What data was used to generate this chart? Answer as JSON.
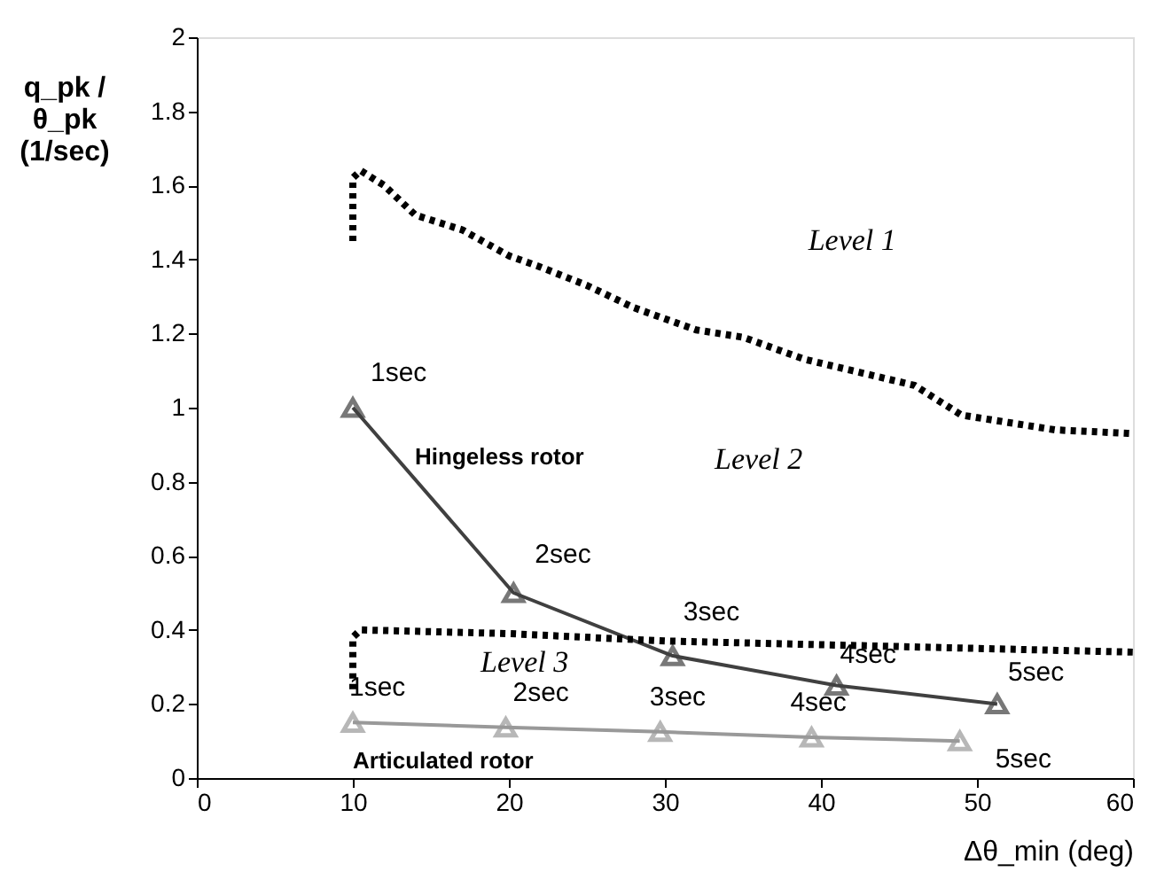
{
  "chart_data": {
    "type": "line",
    "xlabel": "Δθ_min (deg)",
    "ylabel": "q_pk / θ_pk (1/sec)",
    "xlim": [
      0,
      60
    ],
    "ylim": [
      0,
      2
    ],
    "xticks": [
      0,
      10,
      20,
      30,
      40,
      50,
      60
    ],
    "yticks": [
      0,
      0.2,
      0.4,
      0.6,
      0.8,
      1,
      1.2,
      1.4,
      1.6,
      1.8,
      2
    ],
    "grid": false,
    "legend": false,
    "series": [
      {
        "name": "Hingeless rotor",
        "color": "#404040",
        "marker": "triangle",
        "line_style": "solid",
        "x": [
          10,
          20.3,
          30.5,
          41,
          51.3
        ],
        "values": [
          1.0,
          0.5,
          0.33,
          0.25,
          0.2
        ]
      },
      {
        "name": "Articulated rotor",
        "color": "#999999",
        "marker": "triangle",
        "line_style": "solid",
        "x": [
          10,
          19.8,
          29.7,
          39.4,
          48.9
        ],
        "values": [
          0.15,
          0.137,
          0.125,
          0.11,
          0.1
        ]
      },
      {
        "color": "#000000",
        "marker": "none",
        "line_style": "dotted",
        "x": [
          10,
          10,
          10.5,
          12,
          14,
          17,
          20,
          22,
          25,
          28,
          32,
          35,
          39,
          42,
          46,
          49,
          52,
          55,
          60
        ],
        "values": [
          1.45,
          1.62,
          1.64,
          1.6,
          1.52,
          1.48,
          1.41,
          1.38,
          1.33,
          1.27,
          1.21,
          1.19,
          1.13,
          1.1,
          1.06,
          0.98,
          0.96,
          0.94,
          0.93
        ]
      },
      {
        "color": "#000000",
        "marker": "none",
        "line_style": "dotted",
        "x": [
          10,
          10,
          10.5,
          20,
          30,
          40,
          50,
          60
        ],
        "values": [
          0.24,
          0.38,
          0.4,
          0.39,
          0.37,
          0.36,
          0.35,
          0.34
        ]
      }
    ],
    "annotations": [
      {
        "text": "1sec",
        "x": 10,
        "y": 1.0
      },
      {
        "text": "2sec",
        "x": 20.3,
        "y": 0.5
      },
      {
        "text": "3sec",
        "x": 30.5,
        "y": 0.33
      },
      {
        "text": "4sec",
        "x": 41,
        "y": 0.25
      },
      {
        "text": "5sec",
        "x": 51.3,
        "y": 0.2
      },
      {
        "text": "1sec",
        "x": 10,
        "y": 0.15
      },
      {
        "text": "2sec",
        "x": 19.8,
        "y": 0.137
      },
      {
        "text": "3sec",
        "x": 29.7,
        "y": 0.125
      },
      {
        "text": "4sec",
        "x": 39.4,
        "y": 0.11
      },
      {
        "text": "5sec",
        "x": 48.9,
        "y": 0.1
      },
      "Level 1",
      "Level 2",
      "Level 3"
    ]
  }
}
